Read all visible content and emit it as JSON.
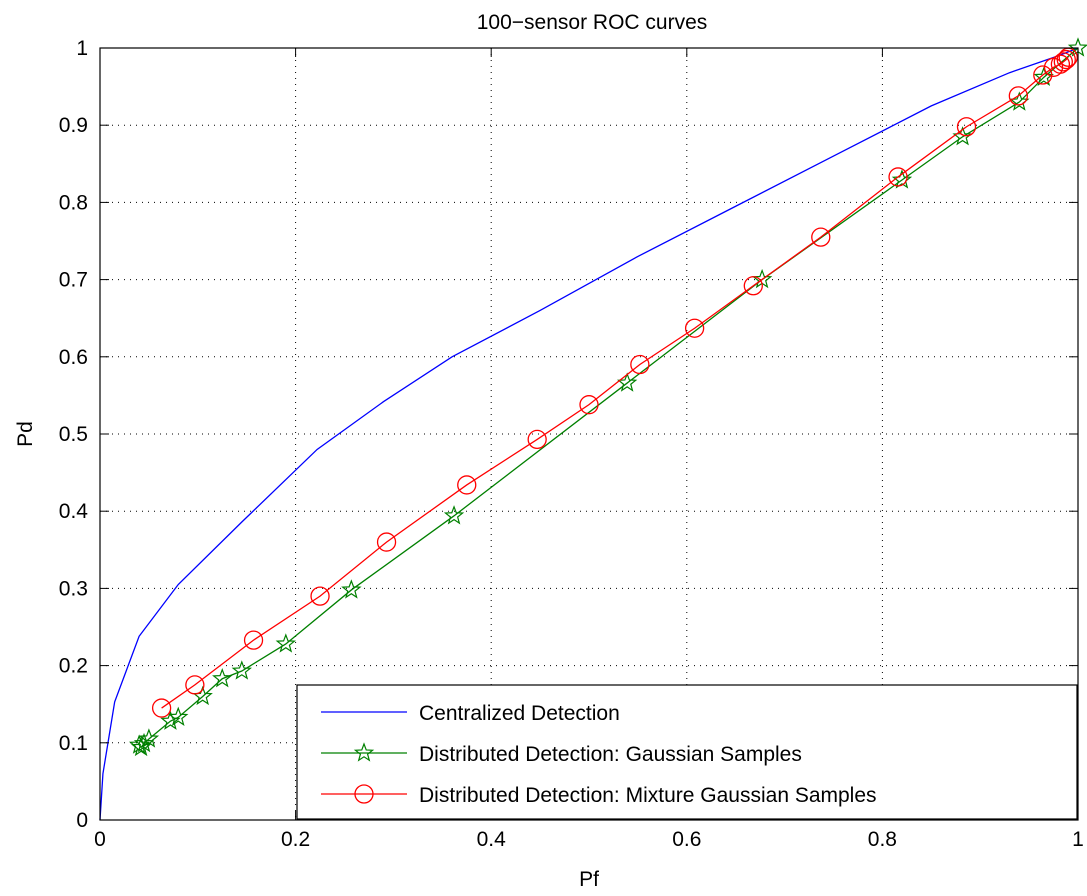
{
  "chart_data": {
    "type": "line",
    "title": "100−sensor ROC curves",
    "xlabel": "Pf",
    "ylabel": "Pd",
    "xlim": [
      0,
      1
    ],
    "ylim": [
      0,
      1
    ],
    "xticks": [
      0,
      0.2,
      0.4,
      0.6,
      0.8,
      1
    ],
    "xtick_labels": [
      "0",
      "0.2",
      "0.4",
      "0.6",
      "0.8",
      "1"
    ],
    "yticks": [
      0,
      0.1,
      0.2,
      0.3,
      0.4,
      0.5,
      0.6,
      0.7,
      0.8,
      0.9,
      1
    ],
    "ytick_labels": [
      "0",
      "0.1",
      "0.2",
      "0.3",
      "0.4",
      "0.5",
      "0.6",
      "0.7",
      "0.8",
      "0.9",
      "1"
    ],
    "grid": true,
    "legend_position": "bottom-right",
    "series": [
      {
        "name": "Centralized Detection",
        "color": "#0000ff",
        "marker": "none",
        "x": [
          0,
          0.003,
          0.015,
          0.04,
          0.08,
          0.145,
          0.222,
          0.29,
          0.36,
          0.45,
          0.55,
          0.65,
          0.75,
          0.85,
          0.93,
          0.98,
          1.0
        ],
        "y": [
          0,
          0.06,
          0.153,
          0.238,
          0.305,
          0.386,
          0.48,
          0.542,
          0.6,
          0.66,
          0.73,
          0.795,
          0.86,
          0.925,
          0.968,
          0.99,
          1.0
        ]
      },
      {
        "name": "Distributed Detection: Gaussian Samples",
        "color": "#008000",
        "marker": "star",
        "x": [
          0.04,
          0.042,
          0.045,
          0.05,
          0.072,
          0.08,
          0.105,
          0.125,
          0.145,
          0.19,
          0.257,
          0.362,
          0.539,
          0.677,
          0.82,
          0.882,
          0.94,
          0.965,
          1.0
        ],
        "y": [
          0.097,
          0.094,
          0.099,
          0.105,
          0.128,
          0.133,
          0.16,
          0.183,
          0.193,
          0.228,
          0.298,
          0.394,
          0.566,
          0.7,
          0.829,
          0.885,
          0.93,
          0.962,
          1.0
        ]
      },
      {
        "name": "Distributed Detection: Mixture Gaussian Samples",
        "color": "#ff0000",
        "marker": "circle",
        "x": [
          0.063,
          0.097,
          0.157,
          0.225,
          0.293,
          0.375,
          0.447,
          0.5,
          0.552,
          0.608,
          0.668,
          0.737,
          0.816,
          0.886,
          0.939,
          0.964,
          0.975,
          0.982,
          0.985,
          0.988,
          0.99
        ],
        "y": [
          0.145,
          0.175,
          0.233,
          0.29,
          0.36,
          0.434,
          0.493,
          0.538,
          0.59,
          0.637,
          0.692,
          0.755,
          0.833,
          0.898,
          0.938,
          0.965,
          0.975,
          0.979,
          0.982,
          0.985,
          0.988
        ]
      }
    ]
  }
}
